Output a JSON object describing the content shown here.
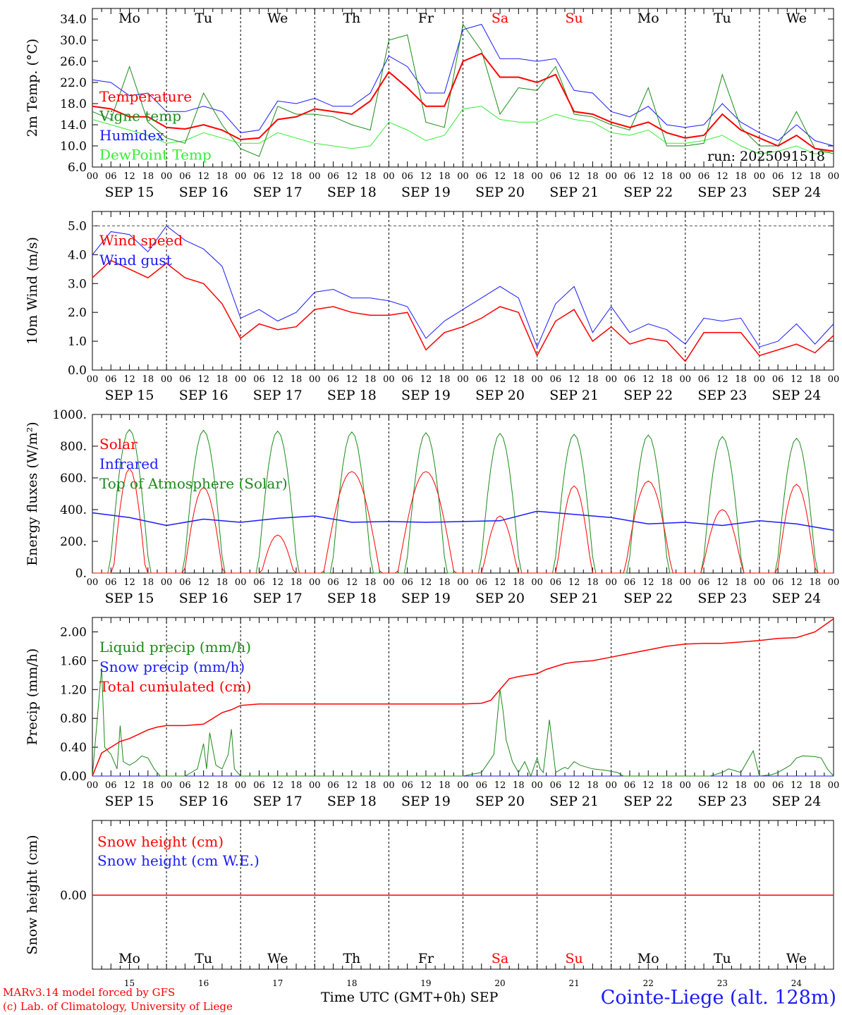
{
  "colors": {
    "temperature": "#ff0000",
    "vigne": "#1a8a1a",
    "humidex": "#1a1aff",
    "dewpoint": "#33ee33",
    "wind_speed": "#ff0000",
    "wind_gust": "#1a1aff",
    "solar": "#ff0000",
    "infrared": "#1a1aff",
    "toa": "#1a8a1a",
    "liquid": "#1a8a1a",
    "snow_precip": "#1a1aff",
    "total": "#ff0000",
    "snow_h": "#ff0000",
    "snow_we": "#1a1aff",
    "weekend": "#ff0000",
    "weekday": "#000000"
  },
  "days": [
    "Mo",
    "Tu",
    "We",
    "Th",
    "Fr",
    "Sa",
    "Su",
    "Mo",
    "Tu",
    "We"
  ],
  "weekend_days": [
    5,
    6
  ],
  "date_labels": [
    "SEP 15",
    "SEP 16",
    "SEP 17",
    "SEP 18",
    "SEP 19",
    "SEP 20",
    "SEP 21",
    "SEP 22",
    "SEP 23",
    "SEP 24"
  ],
  "day_numbers": [
    "15",
    "16",
    "17",
    "18",
    "19",
    "20",
    "21",
    "22",
    "23",
    "24"
  ],
  "hour_ticks": [
    "00",
    "06",
    "12",
    "18"
  ],
  "run_label": "run: 2025091518",
  "footer": {
    "model": "MARv3.14 model forced by GFS",
    "credit": "(c) Lab. of Climatology, University of Liege",
    "xaxis": "Time UTC (GMT+0h) SEP",
    "station": "Cointe-Liege (alt. 128m)"
  },
  "chart_data": [
    {
      "type": "line",
      "ylabel": "2m Temp. (°C)",
      "ylim": [
        6,
        36
      ],
      "yticks": [
        "6.0",
        "10.0",
        "14.0",
        "18.0",
        "22.0",
        "26.0",
        "30.0",
        "34.0"
      ],
      "ytick_values": [
        6,
        10,
        14,
        18,
        22,
        26,
        30,
        34
      ],
      "grid": "day separators",
      "x_hours": [
        0,
        6,
        12,
        18,
        24,
        30,
        36,
        42,
        48,
        54,
        60,
        66,
        72,
        78,
        84,
        90,
        96,
        102,
        108,
        114,
        120,
        126,
        132,
        138,
        144,
        150,
        156,
        162,
        168,
        174,
        180,
        186,
        192,
        198,
        204,
        210,
        216,
        222,
        228,
        234,
        240
      ],
      "series": [
        {
          "name": "Temperature",
          "color_key": "temperature",
          "values": [
            17.5,
            17,
            15.5,
            15.5,
            13.5,
            13.2,
            14,
            13,
            11.2,
            11.5,
            15,
            15.5,
            17,
            16.5,
            16,
            18.5,
            24,
            21,
            17.5,
            17.5,
            26,
            27.5,
            23,
            23,
            22,
            23.5,
            16.5,
            16,
            14.5,
            13.5,
            14.5,
            12.5,
            11.5,
            12,
            16,
            13,
            11.5,
            10,
            12,
            9.5,
            9
          ]
        },
        {
          "name": "Vigne temp",
          "color_key": "vigne",
          "values": [
            16.5,
            15,
            25,
            14.5,
            11.5,
            10.5,
            20,
            14,
            9.5,
            8,
            17.5,
            16,
            16,
            15.5,
            14,
            13,
            30,
            31,
            14.5,
            13.5,
            33,
            28,
            16,
            21,
            20.5,
            25,
            16,
            15.5,
            14,
            13,
            21,
            10,
            10,
            10.5,
            23.5,
            13.5,
            10,
            10,
            16.5,
            9.5,
            8.5
          ]
        },
        {
          "name": "Humidex",
          "color_key": "humidex",
          "values": [
            22.5,
            22,
            19.5,
            20,
            16.5,
            16.5,
            17.5,
            16.5,
            12.5,
            13,
            18.5,
            18,
            19,
            17.5,
            17.5,
            20,
            27,
            25,
            20,
            20,
            32,
            33,
            26.5,
            26.5,
            26,
            26.5,
            20.5,
            20,
            16.5,
            15.5,
            17.5,
            14,
            13.5,
            14,
            18,
            14.5,
            12.5,
            11,
            14,
            11,
            10
          ]
        },
        {
          "name": "DewPoint Temp",
          "color_key": "dewpoint",
          "values": [
            15,
            14,
            13,
            12,
            10.5,
            11,
            12.5,
            11.5,
            10.5,
            10.5,
            12.5,
            11.5,
            10.5,
            10,
            9.5,
            10,
            14.5,
            13,
            11,
            12,
            17,
            17.5,
            15,
            14.5,
            14.5,
            16,
            15,
            14.5,
            12.5,
            12,
            13,
            10.5,
            10.5,
            11,
            12,
            10,
            8.5,
            9,
            10,
            8.5,
            9
          ]
        }
      ]
    },
    {
      "type": "line",
      "ylabel": "10m Wind (m/s)",
      "ylim": [
        0,
        5.5
      ],
      "yticks": [
        "0.0",
        "1.0",
        "2.0",
        "3.0",
        "4.0",
        "5.0"
      ],
      "ytick_values": [
        0,
        1,
        2,
        3,
        4,
        5
      ],
      "grid": "dashed line at 5.0",
      "x_hours": [
        0,
        6,
        12,
        18,
        24,
        30,
        36,
        42,
        48,
        54,
        60,
        66,
        72,
        78,
        84,
        90,
        96,
        102,
        108,
        114,
        120,
        126,
        132,
        138,
        144,
        150,
        156,
        162,
        168,
        174,
        180,
        186,
        192,
        198,
        204,
        210,
        216,
        222,
        228,
        234,
        240
      ],
      "series": [
        {
          "name": "Wind speed",
          "color_key": "wind_speed",
          "values": [
            3.2,
            3.8,
            3.5,
            3.2,
            3.7,
            3.2,
            3,
            2.3,
            1.1,
            1.6,
            1.4,
            1.5,
            2.1,
            2.2,
            2,
            1.9,
            1.9,
            2,
            0.7,
            1.3,
            1.5,
            1.8,
            2.2,
            2,
            0.5,
            1.7,
            2.1,
            1,
            1.5,
            0.9,
            1.1,
            1,
            0.3,
            1.3,
            1.3,
            1.3,
            0.5,
            0.7,
            0.9,
            0.6,
            1.2
          ]
        },
        {
          "name": "Wind gust",
          "color_key": "wind_gust",
          "values": [
            4,
            4.8,
            4.7,
            4.1,
            5,
            4.5,
            4.2,
            3.6,
            1.8,
            2.1,
            1.7,
            2,
            2.7,
            2.8,
            2.5,
            2.5,
            2.4,
            2.2,
            1.1,
            1.7,
            2.1,
            2.5,
            2.9,
            2.5,
            0.8,
            2.3,
            2.9,
            1.3,
            2.2,
            1.3,
            1.6,
            1.4,
            0.9,
            1.8,
            1.7,
            1.8,
            0.8,
            1,
            1.6,
            0.9,
            1.6
          ]
        }
      ]
    },
    {
      "type": "line",
      "ylabel": "Energy fluxes (W/m²)",
      "ylim": [
        0,
        1000
      ],
      "yticks": [
        "0.",
        "200.",
        "400.",
        "600.",
        "800.",
        "1000."
      ],
      "ytick_values": [
        0,
        200,
        400,
        600,
        800,
        1000
      ],
      "toa_peaks": [
        905,
        900,
        895,
        890,
        885,
        880,
        875,
        870,
        860,
        850
      ],
      "solar_peaks": [
        660,
        540,
        240,
        640,
        640,
        360,
        550,
        580,
        400,
        560
      ],
      "solar_width": [
        0.22,
        0.26,
        0.22,
        0.38,
        0.38,
        0.24,
        0.24,
        0.32,
        0.28,
        0.26
      ],
      "series": [
        {
          "name": "Solar",
          "color_key": "solar",
          "values": "diurnal (peaks per solar_peaks)"
        },
        {
          "name": "Infrared",
          "color_key": "infrared",
          "x_hours": [
            0,
            12,
            24,
            36,
            48,
            60,
            72,
            84,
            96,
            108,
            120,
            132,
            144,
            156,
            168,
            180,
            192,
            204,
            216,
            228,
            240
          ],
          "values": [
            380,
            350,
            300,
            340,
            320,
            345,
            360,
            320,
            325,
            320,
            325,
            330,
            390,
            370,
            350,
            310,
            320,
            300,
            330,
            310,
            270
          ]
        },
        {
          "name": "Top of Atmosphere (Solar)",
          "color_key": "toa",
          "values": "diurnal (peaks per toa_peaks)"
        }
      ]
    },
    {
      "type": "line",
      "ylabel": "Precip (mm/h)",
      "ylim": [
        0,
        2.2
      ],
      "yticks": [
        "0.00",
        "0.40",
        "0.80",
        "1.20",
        "1.60",
        "2.00"
      ],
      "ytick_values": [
        0,
        0.4,
        0.8,
        1.2,
        1.6,
        2.0
      ],
      "series": [
        {
          "name": "Liquid precip (mm/h)",
          "color_key": "liquid",
          "x_hours": [
            0,
            3,
            4,
            6,
            8,
            9,
            10,
            12,
            14,
            16,
            18,
            20,
            22,
            24,
            26,
            30,
            34,
            36,
            37,
            38,
            40,
            42,
            44,
            45,
            46,
            48,
            50,
            120,
            126,
            130,
            132,
            133,
            134,
            136,
            138,
            140,
            142,
            144,
            145,
            146,
            148,
            150,
            152,
            153,
            154,
            156,
            158,
            162,
            166,
            170,
            172,
            176,
            180,
            190,
            200,
            204,
            206,
            210,
            214,
            216,
            220,
            222,
            226,
            228,
            230,
            234,
            236,
            238,
            240
          ],
          "values": [
            0,
            1.5,
            0.4,
            0.3,
            0.1,
            0.7,
            0.2,
            0.15,
            0.2,
            0.28,
            0.25,
            0.1,
            0,
            0,
            0,
            0,
            0.1,
            0.45,
            0.1,
            0.6,
            0.15,
            0.1,
            0.3,
            0.65,
            0.1,
            0,
            0,
            0,
            0.05,
            0.3,
            1.2,
            0.9,
            0.5,
            0.2,
            0.05,
            0.2,
            0,
            0.25,
            0.1,
            0.05,
            0.78,
            0.05,
            0.1,
            0.12,
            0.1,
            0.2,
            0.15,
            0.1,
            0.08,
            0.05,
            0,
            0,
            0,
            0,
            0,
            0.05,
            0.1,
            0.05,
            0.35,
            0,
            0.02,
            0.05,
            0.15,
            0.25,
            0.28,
            0.27,
            0.25,
            0.1,
            0
          ]
        },
        {
          "name": "Snow precip (mm/h)",
          "color_key": "snow_precip",
          "x_hours": [
            0,
            240
          ],
          "values": [
            0,
            0
          ]
        },
        {
          "name": "Total cumulated (cm)",
          "color_key": "total",
          "x_hours": [
            0,
            3,
            6,
            9,
            12,
            15,
            18,
            21,
            24,
            30,
            36,
            39,
            42,
            45,
            48,
            54,
            60,
            72,
            96,
            120,
            126,
            129,
            132,
            135,
            138,
            141,
            144,
            147,
            150,
            153,
            156,
            162,
            168,
            174,
            180,
            186,
            192,
            198,
            204,
            210,
            216,
            222,
            228,
            234,
            240
          ],
          "values": [
            0,
            0.32,
            0.4,
            0.48,
            0.52,
            0.58,
            0.64,
            0.68,
            0.7,
            0.7,
            0.72,
            0.8,
            0.88,
            0.92,
            0.98,
            1,
            1,
            1,
            1,
            1,
            1.01,
            1.05,
            1.2,
            1.35,
            1.38,
            1.4,
            1.42,
            1.48,
            1.52,
            1.56,
            1.58,
            1.6,
            1.65,
            1.7,
            1.75,
            1.8,
            1.83,
            1.84,
            1.84,
            1.86,
            1.88,
            1.91,
            1.92,
            2.0,
            2.18
          ]
        }
      ]
    },
    {
      "type": "line",
      "ylabel": "Snow height (cm)",
      "yticks": [
        "0.00"
      ],
      "series": [
        {
          "name": "Snow height (cm)",
          "color_key": "snow_h",
          "x_hours": [
            0,
            240
          ],
          "values": [
            0,
            0
          ]
        },
        {
          "name": "Snow height (cm W.E.)",
          "color_key": "snow_we",
          "x_hours": [
            0,
            240
          ],
          "values": [
            0,
            0
          ]
        }
      ]
    }
  ]
}
